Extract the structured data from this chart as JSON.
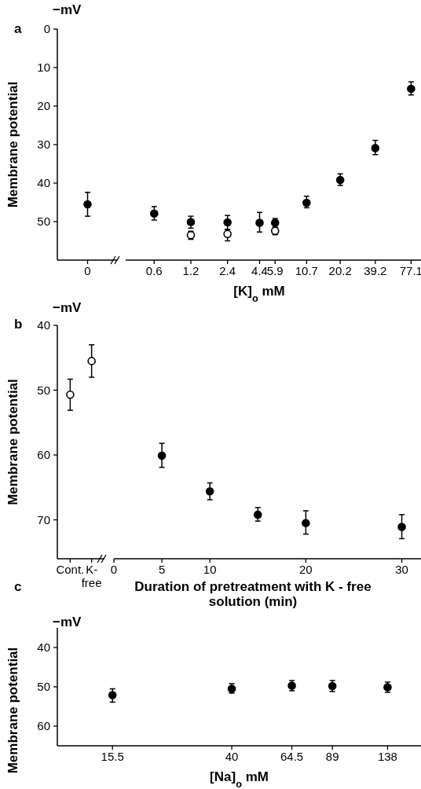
{
  "chart_data": [
    {
      "type": "scatter",
      "title": "a",
      "ylabel": "Membrane potential",
      "annotations": [
        "−mV"
      ],
      "marker": "circle",
      "categories": [
        "0"
      ],
      "ylim": [
        60,
        0
      ],
      "yticks": [
        0,
        10,
        20,
        30,
        40,
        50
      ],
      "series": [
        {
          "color": "#000000",
          "values": [
            45.5
          ],
          "errors": [
            [
              42.4,
              48.6
            ]
          ]
        }
      ]
    },
    {
      "type": "scatter",
      "xlabel": "[K]$_{o}$ mM",
      "marker": "circle",
      "log": "x",
      "tick_labels": "x",
      "xlim": [
        0.35,
        93
      ],
      "xticks": [
        0.6,
        1.2,
        2.4,
        4.4,
        5.9,
        10.7,
        20.2,
        39.2,
        77.1
      ],
      "ylim": [
        60,
        0
      ],
      "yticks": [
        0,
        10,
        20,
        30,
        40,
        50
      ],
      "series": [
        {
          "color": "#000000",
          "x": [
            0.6,
            1.2,
            2.4,
            4.4,
            5.9,
            10.7,
            20.2,
            39.2,
            77.1
          ],
          "values": [
            47.9,
            50.1,
            50.2,
            50.3,
            50.3,
            45.1,
            39.2,
            30.9,
            15.5
          ],
          "errors": [
            [
              46.1,
              49.6
            ],
            [
              48.6,
              51.7
            ],
            [
              48.4,
              52.0
            ],
            [
              47.6,
              52.7
            ],
            [
              49.2,
              51.5
            ],
            [
              43.4,
              46.4
            ],
            [
              37.6,
              40.6
            ],
            [
              28.9,
              32.6
            ],
            [
              13.7,
              17.1
            ]
          ]
        },
        {
          "color": "#ffffff",
          "x": [
            1.2,
            2.4,
            5.9
          ],
          "values": [
            53.5,
            53.2,
            52.4
          ],
          "errors": [
            [
              52.5,
              54.6
            ],
            [
              52.1,
              55.0
            ],
            [
              51.5,
              53.4
            ]
          ]
        }
      ]
    },
    {
      "type": "scatter",
      "title": "b",
      "ylabel": "Membrane potential",
      "annotations": [
        "−mV"
      ],
      "marker": "circle",
      "categories": [
        "Cont.",
        "K-free"
      ],
      "ylim": [
        76,
        40
      ],
      "yticks": [
        40,
        50,
        60,
        70
      ],
      "series": [
        {
          "color": "#ffffff",
          "values": [
            50.7,
            45.5
          ],
          "errors": [
            [
              48.3,
              53.1
            ],
            [
              43.0,
              48.0
            ]
          ]
        }
      ]
    },
    {
      "type": "scatter",
      "xlabel": "Duration of pretreatment with K - free solution (min)",
      "marker": "circle",
      "tick_labels": "x",
      "xlim": [
        0,
        32
      ],
      "xticks": [
        0,
        5,
        10,
        20,
        30
      ],
      "ylim": [
        76,
        40
      ],
      "yticks": [
        40,
        50,
        60,
        70
      ],
      "series": [
        {
          "color": "#000000",
          "x": [
            5,
            10,
            15,
            20,
            30
          ],
          "values": [
            60.1,
            65.6,
            69.2,
            70.5,
            71.1
          ],
          "errors": [
            [
              58.2,
              61.9
            ],
            [
              64.3,
              66.9
            ],
            [
              68.1,
              70.2
            ],
            [
              68.6,
              72.2
            ],
            [
              69.2,
              72.9
            ]
          ]
        }
      ]
    },
    {
      "type": "scatter",
      "title": "c",
      "ylabel": "Membrane potential",
      "xlabel": "[Na]$_{o}$ mM",
      "annotations": [
        "−mV"
      ],
      "marker": "circle",
      "log": "x",
      "xlim": [
        10,
        180
      ],
      "xticks": [
        15.5,
        40,
        64.5,
        89,
        138
      ],
      "ylim": [
        65,
        35
      ],
      "yticks": [
        40,
        50,
        60
      ],
      "series": [
        {
          "color": "#000000",
          "x": [
            15.5,
            40,
            64.5,
            89,
            138
          ],
          "values": [
            52.1,
            50.5,
            49.7,
            49.8,
            50.1
          ],
          "errors": [
            [
              50.5,
              53.9
            ],
            [
              49.2,
              51.6
            ],
            [
              48.4,
              51.0
            ],
            [
              48.4,
              51.2
            ],
            [
              48.8,
              51.4
            ]
          ]
        }
      ]
    }
  ]
}
